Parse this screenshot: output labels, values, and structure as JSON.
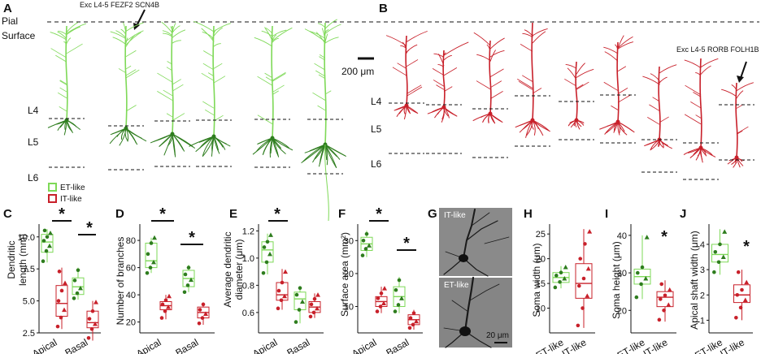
{
  "colors": {
    "et": "#7ed957",
    "it": "#c8202a",
    "et_dark": "#2e7d1e",
    "it_dark": "#7a1010",
    "micro_bg": "#6f6f6f"
  },
  "panels": {
    "A": {
      "letter": "A",
      "pial_label_line1": "Pial",
      "pial_label_line2": "Surface",
      "annotation": "Exc L4-5 FEZF2 SCN4B",
      "layers": [
        "L4",
        "L5",
        "L6"
      ]
    },
    "B": {
      "letter": "B",
      "scale_bar": "200 μm",
      "annotation": "Exc L4-5 RORB FOLH1B",
      "layers": [
        "L4",
        "L5",
        "L6"
      ]
    },
    "legend": {
      "et": "ET-like",
      "it": "IT-like"
    },
    "C": {
      "letter": "C",
      "ylabel_line1": "Dendritic",
      "ylabel_line2": "length (mm)"
    },
    "D": {
      "letter": "D",
      "ylabel": "Number of branches"
    },
    "E": {
      "letter": "E",
      "ylabel_line1": "Average dendritic",
      "ylabel_line2": "diameter (μm)"
    },
    "F": {
      "letter": "F",
      "ylabel": "Surface area (mm²)"
    },
    "G": {
      "letter": "G",
      "top_label": "IT-like",
      "bottom_label": "ET-like",
      "scale_bar": "20 μm"
    },
    "H": {
      "letter": "H",
      "ylabel": "Soma width (μm)"
    },
    "I": {
      "letter": "I",
      "ylabel": "Soma height (μm)"
    },
    "J": {
      "letter": "J",
      "ylabel": "Apical shaft width (μm)"
    },
    "star": "*"
  },
  "chart_data": [
    {
      "panel": "C",
      "type": "box",
      "categories": [
        "Apical",
        "Basal"
      ],
      "ylim": [
        2.5,
        11
      ],
      "yticks": [
        "10.0",
        "7.5",
        "5.0",
        "2.5"
      ],
      "yticks_values": [
        10,
        7.5,
        5,
        2.5
      ],
      "series": [
        {
          "name": "ET-like",
          "groups": [
            {
              "category": "Apical",
              "min": 8.0,
              "q1": 8.8,
              "median": 9.6,
              "q3": 10.2,
              "max": 10.6,
              "points": [
                8.1,
                8.9,
                9.3,
                9.7,
                10.0,
                10.3,
                10.5
              ]
            },
            {
              "category": "Basal",
              "min": 5.1,
              "q1": 5.5,
              "median": 6.1,
              "q3": 6.8,
              "max": 7.6,
              "points": [
                5.2,
                5.6,
                6.0,
                6.6,
                7.4
              ]
            }
          ]
        },
        {
          "name": "IT-like",
          "groups": [
            {
              "category": "Apical",
              "min": 2.8,
              "q1": 3.8,
              "median": 4.8,
              "q3": 6.2,
              "max": 7.6,
              "points": [
                3.0,
                3.7,
                4.3,
                5.0,
                5.8,
                6.4,
                7.3
              ]
            },
            {
              "category": "Basal",
              "min": 1.9,
              "q1": 2.9,
              "median": 3.3,
              "q3": 4.2,
              "max": 5.0,
              "points": [
                2.1,
                2.8,
                3.2,
                3.6,
                4.2,
                4.9
              ]
            }
          ]
        }
      ],
      "significance": [
        "Apical",
        "Basal"
      ]
    },
    {
      "panel": "D",
      "type": "box",
      "categories": [
        "Apical",
        "Basal"
      ],
      "ylim": [
        12,
        92
      ],
      "yticks": [
        "20",
        "40",
        "60",
        "80"
      ],
      "yticks_values": [
        20,
        40,
        60,
        80
      ],
      "series": [
        {
          "name": "ET-like",
          "groups": [
            {
              "category": "Apical",
              "min": 56,
              "q1": 60,
              "median": 65,
              "q3": 78,
              "max": 82,
              "points": [
                56,
                60,
                64,
                70,
                78,
                82
              ]
            },
            {
              "category": "Basal",
              "min": 42,
              "q1": 46,
              "median": 52,
              "q3": 58,
              "max": 62,
              "points": [
                42,
                47,
                51,
                55,
                60
              ]
            }
          ]
        },
        {
          "name": "IT-like",
          "groups": [
            {
              "category": "Apical",
              "min": 22,
              "q1": 29,
              "median": 32,
              "q3": 35,
              "max": 40,
              "points": [
                23,
                28,
                31,
                33,
                36,
                39
              ]
            },
            {
              "category": "Basal",
              "min": 18,
              "q1": 23,
              "median": 27,
              "q3": 31,
              "max": 34,
              "points": [
                19,
                23,
                26,
                29,
                33
              ]
            }
          ]
        }
      ],
      "significance": [
        "Apical",
        "Basal"
      ]
    },
    {
      "panel": "E",
      "type": "box",
      "categories": [
        "Apical",
        "Basal"
      ],
      "ylim": [
        0.45,
        1.25
      ],
      "yticks": [
        "1.2",
        "1.0",
        "0.8",
        "0.6"
      ],
      "yticks_values": [
        1.2,
        1.0,
        0.8,
        0.6
      ],
      "series": [
        {
          "name": "ET-like",
          "groups": [
            {
              "category": "Apical",
              "min": 0.88,
              "q1": 0.97,
              "median": 1.06,
              "q3": 1.12,
              "max": 1.18,
              "points": [
                0.89,
                0.97,
                1.03,
                1.08,
                1.12,
                1.17
              ]
            },
            {
              "category": "Basal",
              "min": 0.52,
              "q1": 0.62,
              "median": 0.7,
              "q3": 0.75,
              "max": 0.79,
              "points": [
                0.53,
                0.62,
                0.68,
                0.73,
                0.78
              ]
            }
          ]
        },
        {
          "name": "IT-like",
          "groups": [
            {
              "category": "Apical",
              "min": 0.62,
              "q1": 0.69,
              "median": 0.73,
              "q3": 0.82,
              "max": 0.92,
              "points": [
                0.63,
                0.69,
                0.72,
                0.76,
                0.82,
                0.9
              ]
            },
            {
              "category": "Basal",
              "min": 0.56,
              "q1": 0.6,
              "median": 0.64,
              "q3": 0.68,
              "max": 0.74,
              "points": [
                0.57,
                0.6,
                0.63,
                0.66,
                0.7,
                0.73
              ]
            }
          ]
        }
      ],
      "significance": [
        "Apical"
      ]
    },
    {
      "panel": "F",
      "type": "box",
      "categories": [
        "Apical",
        "Basal"
      ],
      "ylim": [
        2,
        35
      ],
      "yticks": [
        "30",
        "20",
        "10"
      ],
      "yticks_values": [
        30,
        20,
        10
      ],
      "series": [
        {
          "name": "ET-like",
          "groups": [
            {
              "category": "Apical",
              "min": 25,
              "q1": 27,
              "median": 29,
              "q3": 31,
              "max": 33,
              "points": [
                25.5,
                27.5,
                28.5,
                30.0,
                32.0
              ]
            },
            {
              "category": "Basal",
              "min": 8,
              "q1": 10,
              "median": 13,
              "q3": 16,
              "max": 19,
              "points": [
                8.5,
                10.5,
                12.5,
                15.0,
                18.0
              ]
            }
          ]
        },
        {
          "name": "IT-like",
          "groups": [
            {
              "category": "Apical",
              "min": 8,
              "q1": 10,
              "median": 11.5,
              "q3": 13,
              "max": 16,
              "points": [
                8.5,
                10.0,
                11.0,
                12.5,
                14.0,
                15.5
              ]
            },
            {
              "category": "Basal",
              "min": 3,
              "q1": 4.5,
              "median": 6,
              "q3": 7.5,
              "max": 9,
              "points": [
                3.5,
                4.5,
                5.5,
                6.5,
                8.0
              ]
            }
          ]
        }
      ],
      "significance": [
        "Apical",
        "Basal"
      ]
    },
    {
      "panel": "H",
      "type": "box",
      "categories": [
        "ET-like",
        "IT-like"
      ],
      "ylim": [
        5,
        27
      ],
      "yticks": [
        "25",
        "20",
        "15",
        "10"
      ],
      "yticks_values": [
        25,
        20,
        15,
        10
      ],
      "series": [
        {
          "name": "ET-like",
          "groups": [
            {
              "category": "ET-like",
              "min": 14,
              "q1": 15.2,
              "median": 16.2,
              "q3": 17.2,
              "max": 18.5,
              "points": [
                14.2,
                15.3,
                16.0,
                16.6,
                17.2,
                18.3
              ]
            }
          ]
        },
        {
          "name": "IT-like",
          "groups": [
            {
              "category": "IT-like",
              "min": 6,
              "q1": 12,
              "median": 15,
              "q3": 19,
              "max": 26,
              "points": [
                6.5,
                10.0,
                12.5,
                14.5,
                16.0,
                18.0,
                20.0,
                23.0,
                25.5
              ]
            }
          ]
        }
      ],
      "significance": []
    },
    {
      "panel": "I",
      "type": "box",
      "categories": [
        "ET-like",
        "IT-like"
      ],
      "ylim": [
        14,
        43
      ],
      "yticks": [
        "40",
        "30",
        "20"
      ],
      "yticks_values": [
        40,
        30,
        20
      ],
      "series": [
        {
          "name": "ET-like",
          "groups": [
            {
              "category": "ET-like",
              "min": 23,
              "q1": 27,
              "median": 29,
              "q3": 31,
              "max": 40,
              "points": [
                23.5,
                27.0,
                28.5,
                30.0,
                31.5,
                39.5
              ]
            }
          ]
        },
        {
          "name": "IT-like",
          "groups": [
            {
              "category": "IT-like",
              "min": 17,
              "q1": 21,
              "median": 23.5,
              "q3": 25,
              "max": 28,
              "points": [
                17.5,
                20.0,
                21.5,
                23.0,
                24.0,
                25.5,
                27.0
              ]
            }
          ]
        }
      ],
      "significance": [
        "ET-like vs IT-like"
      ]
    },
    {
      "panel": "J",
      "type": "box",
      "categories": [
        "ET-like",
        "IT-like"
      ],
      "ylim": [
        0.5,
        4.8
      ],
      "yticks": [
        "4",
        "3",
        "2",
        "1"
      ],
      "yticks_values": [
        4,
        3,
        2,
        1
      ],
      "series": [
        {
          "name": "ET-like",
          "groups": [
            {
              "category": "ET-like",
              "min": 2.8,
              "q1": 3.3,
              "median": 3.6,
              "q3": 4.0,
              "max": 4.6,
              "points": [
                2.9,
                3.3,
                3.5,
                3.7,
                4.0,
                4.5
              ]
            }
          ]
        },
        {
          "name": "IT-like",
          "groups": [
            {
              "category": "IT-like",
              "min": 1.0,
              "q1": 1.7,
              "median": 2.0,
              "q3": 2.4,
              "max": 3.0,
              "points": [
                1.1,
                1.5,
                1.8,
                2.0,
                2.2,
                2.5,
                2.9
              ]
            }
          ]
        }
      ],
      "significance": [
        "ET-like vs IT-like"
      ]
    }
  ]
}
